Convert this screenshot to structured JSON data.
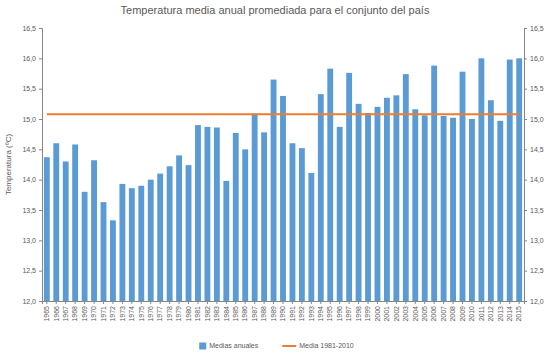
{
  "chart_data": {
    "type": "bar",
    "title": "Temperatura media anual promediada para el conjunto del país",
    "y_label": "Temperatura (ºC)",
    "categories": [
      "1965",
      "1966",
      "1967",
      "1968",
      "1969",
      "1970",
      "1971",
      "1972",
      "1973",
      "1974",
      "1975",
      "1976",
      "1977",
      "1978",
      "1979",
      "1980",
      "1981",
      "1982",
      "1983",
      "1984",
      "1985",
      "1986",
      "1987",
      "1988",
      "1989",
      "1990",
      "1991",
      "1992",
      "1993",
      "1994",
      "1995",
      "1996",
      "1997",
      "1998",
      "1999",
      "2000",
      "2001",
      "2002",
      "2003",
      "2004",
      "2005",
      "2006",
      "2007",
      "2008",
      "2009",
      "2010",
      "2011",
      "2012",
      "2013",
      "2014",
      "2015"
    ],
    "series": [
      {
        "name": "Medias anuales",
        "type": "bar",
        "color": "#5b9bd5",
        "values": [
          14.37,
          14.6,
          14.3,
          14.58,
          13.8,
          14.32,
          13.63,
          13.33,
          13.93,
          13.86,
          13.9,
          14.0,
          14.1,
          14.22,
          14.4,
          14.24,
          14.9,
          14.87,
          14.86,
          13.98,
          14.77,
          14.5,
          15.09,
          14.78,
          15.65,
          15.38,
          14.6,
          14.52,
          14.11,
          15.41,
          15.83,
          14.87,
          15.76,
          15.25,
          15.1,
          15.2,
          15.35,
          15.39,
          15.74,
          15.16,
          15.06,
          15.88,
          15.05,
          15.02,
          15.78,
          15.0,
          16.0,
          15.31,
          14.97,
          15.98,
          16.0
        ]
      },
      {
        "name": "Media 1981-2010",
        "type": "line",
        "color": "#ed7d31",
        "values": [
          15.08,
          15.08,
          15.08,
          15.08,
          15.08,
          15.08,
          15.08,
          15.08,
          15.08,
          15.08,
          15.08,
          15.08,
          15.08,
          15.08,
          15.08,
          15.08,
          15.08,
          15.08,
          15.08,
          15.08,
          15.08,
          15.08,
          15.08,
          15.08,
          15.08,
          15.08,
          15.08,
          15.08,
          15.08,
          15.08,
          15.08,
          15.08,
          15.08,
          15.08,
          15.08,
          15.08,
          15.08,
          15.08,
          15.08,
          15.08,
          15.08,
          15.08,
          15.08,
          15.08,
          15.08,
          15.08,
          15.08,
          15.08,
          15.08,
          15.08,
          15.08
        ]
      }
    ],
    "ylim": [
      12,
      16.5
    ],
    "yticks": [
      {
        "value": 12,
        "label": "12,0"
      },
      {
        "value": 12.5,
        "label": "12,5"
      },
      {
        "value": 13,
        "label": "13,0"
      },
      {
        "value": 13.5,
        "label": "13,5"
      },
      {
        "value": 14,
        "label": "14,0"
      },
      {
        "value": 14.5,
        "label": "14,5"
      },
      {
        "value": 15,
        "label": "15,0"
      },
      {
        "value": 15.5,
        "label": "15,5"
      },
      {
        "value": 16,
        "label": "16,0"
      },
      {
        "value": 16.5,
        "label": "16,5"
      }
    ],
    "y2lim": [
      12,
      16.5
    ],
    "y2ticks": [
      {
        "value": 12,
        "label": "12,0"
      },
      {
        "value": 12.5,
        "label": "12,5"
      },
      {
        "value": 13,
        "label": "13,0"
      },
      {
        "value": 13.5,
        "label": "13,5"
      },
      {
        "value": 14,
        "label": "14,0"
      },
      {
        "value": 14.5,
        "label": "14,5"
      },
      {
        "value": 15,
        "label": "15,0"
      },
      {
        "value": 15.5,
        "label": "15,5"
      },
      {
        "value": 16,
        "label": "16,0"
      },
      {
        "value": 16.5,
        "label": "16,5"
      }
    ],
    "grid": false,
    "legend": "bottom"
  }
}
